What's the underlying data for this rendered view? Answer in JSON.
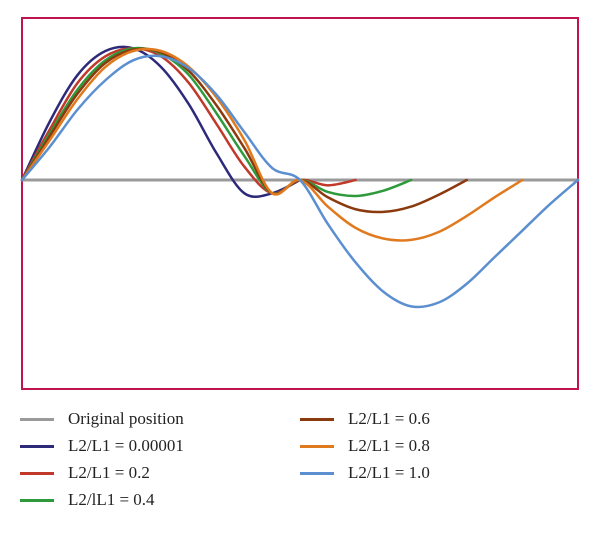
{
  "chart_data": {
    "type": "line",
    "title": "",
    "xlabel": "",
    "ylabel": "",
    "xlim": [
      0,
      1
    ],
    "ylim": [
      -1.6,
      1.0
    ],
    "grid": false,
    "axes_visible": false,
    "frame_color": "#c0144f",
    "legend_position": "bottom",
    "series": [
      {
        "name": "Original position",
        "color": "#9a9a9a",
        "x": [
          0,
          1
        ],
        "y": [
          0,
          0
        ]
      },
      {
        "name": "L2/L1 = 0.00001",
        "color": "#2e2a7a",
        "x": [
          0,
          0.05,
          0.1,
          0.15,
          0.2,
          0.25,
          0.3,
          0.35,
          0.4,
          0.45,
          0.5
        ],
        "y": [
          0,
          0.44,
          0.79,
          0.97,
          0.99,
          0.85,
          0.57,
          0.2,
          -0.1,
          -0.1,
          0
        ]
      },
      {
        "name": "L2/L1 = 0.2",
        "color": "#c0392b",
        "x": [
          0,
          0.05,
          0.1,
          0.15,
          0.2,
          0.25,
          0.3,
          0.35,
          0.4,
          0.45,
          0.5,
          0.55,
          0.6
        ],
        "y": [
          0,
          0.38,
          0.73,
          0.93,
          0.99,
          0.93,
          0.73,
          0.42,
          0.1,
          -0.1,
          0,
          -0.04,
          0
        ]
      },
      {
        "name": "L2/lL1 = 0.4",
        "color": "#2e9a3c",
        "x": [
          0,
          0.05,
          0.1,
          0.15,
          0.2,
          0.25,
          0.3,
          0.35,
          0.4,
          0.45,
          0.5,
          0.55,
          0.6,
          0.65,
          0.7
        ],
        "y": [
          0,
          0.35,
          0.68,
          0.9,
          0.99,
          0.95,
          0.79,
          0.5,
          0.18,
          -0.1,
          0,
          -0.09,
          -0.12,
          -0.08,
          0
        ]
      },
      {
        "name": "L2/L1 = 0.6",
        "color": "#8b3a0e",
        "x": [
          0,
          0.05,
          0.1,
          0.15,
          0.2,
          0.25,
          0.3,
          0.35,
          0.4,
          0.45,
          0.5,
          0.55,
          0.6,
          0.65,
          0.7,
          0.75,
          0.8
        ],
        "y": [
          0,
          0.33,
          0.65,
          0.88,
          0.98,
          0.96,
          0.82,
          0.56,
          0.24,
          -0.1,
          0,
          -0.13,
          -0.22,
          -0.24,
          -0.2,
          -0.11,
          0
        ]
      },
      {
        "name": "L2/L1 = 0.8",
        "color": "#e07a1f",
        "x": [
          0,
          0.05,
          0.1,
          0.15,
          0.2,
          0.25,
          0.3,
          0.35,
          0.4,
          0.45,
          0.5,
          0.55,
          0.6,
          0.65,
          0.7,
          0.75,
          0.8,
          0.85,
          0.9
        ],
        "y": [
          0,
          0.3,
          0.61,
          0.85,
          0.97,
          0.97,
          0.85,
          0.62,
          0.3,
          -0.1,
          0,
          -0.2,
          -0.36,
          -0.44,
          -0.45,
          -0.39,
          -0.27,
          -0.13,
          0
        ]
      },
      {
        "name": "L2/L1 = 1.0",
        "color": "#5b8fd0",
        "x": [
          0,
          0.05,
          0.1,
          0.15,
          0.2,
          0.25,
          0.3,
          0.35,
          0.4,
          0.45,
          0.5,
          0.55,
          0.6,
          0.65,
          0.7,
          0.75,
          0.8,
          0.85,
          0.9,
          0.95,
          1.0
        ],
        "y": [
          0,
          0.25,
          0.53,
          0.75,
          0.9,
          0.93,
          0.84,
          0.64,
          0.36,
          0.09,
          0,
          -0.33,
          -0.62,
          -0.84,
          -0.95,
          -0.92,
          -0.78,
          -0.58,
          -0.38,
          -0.18,
          0
        ]
      }
    ]
  }
}
